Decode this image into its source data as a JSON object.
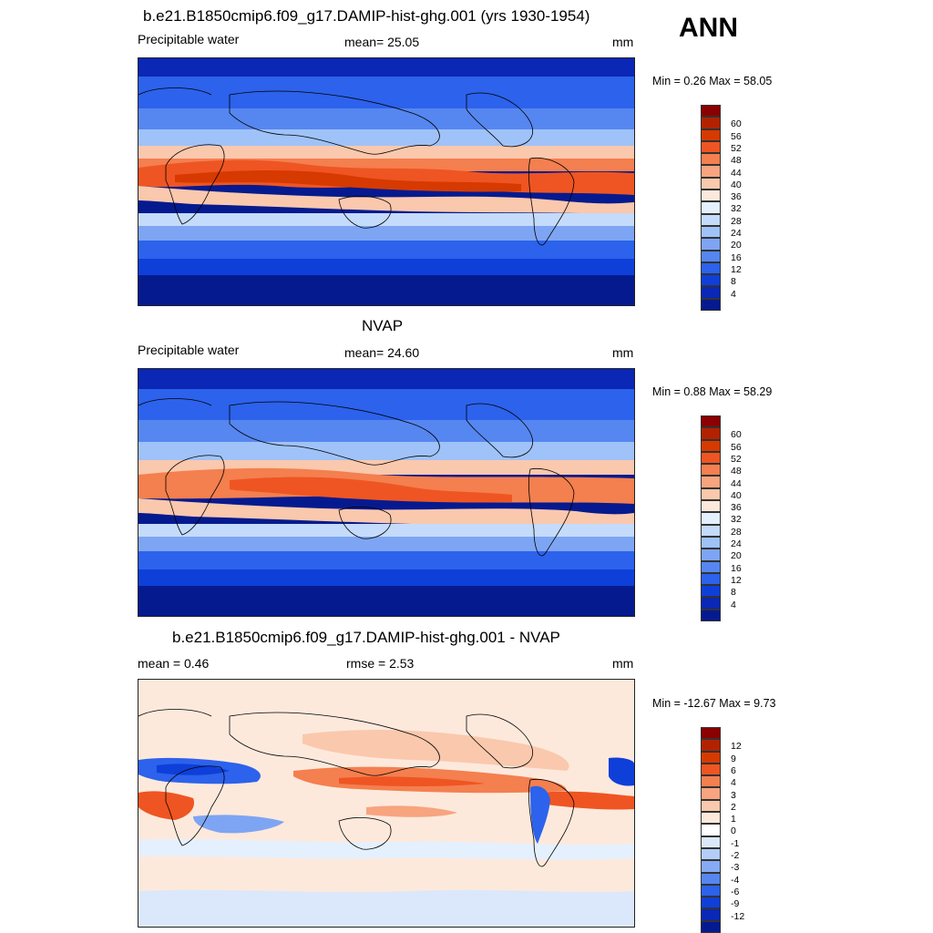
{
  "season": "ANN",
  "panels": [
    {
      "id": "model",
      "title": "b.e21.B1850cmip6.f09_g17.DAMIP-hist-ghg.001 (yrs 1930-1954)",
      "left_text": "Precipitable water",
      "center_text": "mean=  25.05",
      "units": "mm",
      "minmax": "Min =   0.26 Max =  58.05",
      "colorbar": {
        "colors": [
          "#8b0000",
          "#b22200",
          "#d63a00",
          "#ef5522",
          "#f47f4f",
          "#f7a47f",
          "#fac8ad",
          "#fde9dc",
          "#e4f0fd",
          "#c4dbfb",
          "#9fc2f8",
          "#7ea5f3",
          "#5686f0",
          "#2c62ec",
          "#0f3fd9",
          "#0a27b6",
          "#061a8f"
        ],
        "labels": [
          "60",
          "56",
          "52",
          "48",
          "44",
          "40",
          "36",
          "32",
          "28",
          "24",
          "20",
          "16",
          "12",
          "8",
          "4"
        ]
      }
    },
    {
      "id": "obs",
      "title": "NVAP",
      "left_text": "Precipitable water",
      "center_text": "mean=  24.60",
      "units": "mm",
      "minmax": "Min =   0.88 Max =  58.29",
      "colorbar": {
        "colors": [
          "#8b0000",
          "#b22200",
          "#d63a00",
          "#ef5522",
          "#f47f4f",
          "#f7a47f",
          "#fac8ad",
          "#fde9dc",
          "#e4f0fd",
          "#c4dbfb",
          "#9fc2f8",
          "#7ea5f3",
          "#5686f0",
          "#2c62ec",
          "#0f3fd9",
          "#0a27b6",
          "#061a8f"
        ],
        "labels": [
          "60",
          "56",
          "52",
          "48",
          "44",
          "40",
          "36",
          "32",
          "28",
          "24",
          "20",
          "16",
          "12",
          "8",
          "4"
        ]
      }
    },
    {
      "id": "diff",
      "title": "b.e21.B1850cmip6.f09_g17.DAMIP-hist-ghg.001 - NVAP",
      "left_text": "mean =   0.46",
      "center_text": "rmse =   2.53",
      "units": "mm",
      "minmax": "Min = -12.67 Max =   9.73",
      "colorbar": {
        "colors": [
          "#8b0000",
          "#b22200",
          "#d63a00",
          "#ef5522",
          "#f47f4f",
          "#f7a47f",
          "#fac8ad",
          "#fde9dc",
          "#ffffff",
          "#dbe8fb",
          "#b3cdf8",
          "#86aaf3",
          "#5686f0",
          "#2c62ec",
          "#0f3fd9",
          "#0a27b6",
          "#061a8f"
        ],
        "labels": [
          "12",
          "9",
          "6",
          "4",
          "3",
          "2",
          "1",
          "0",
          "-1",
          "-2",
          "-3",
          "-4",
          "-6",
          "-9",
          "-12"
        ]
      }
    }
  ]
}
